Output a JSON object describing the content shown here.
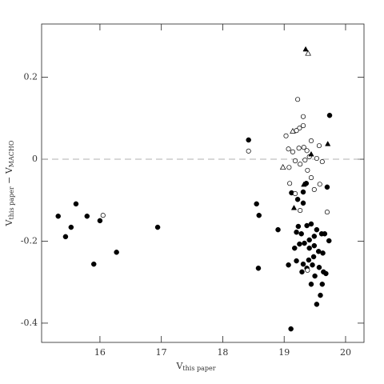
{
  "chart_data": {
    "type": "scatter",
    "xlabel": {
      "main": "V",
      "sub": "this paper"
    },
    "ylabel": {
      "parts": [
        {
          "main": "V",
          "sub": "this paper"
        },
        {
          "main": " − V",
          "sub": "MACHO"
        }
      ]
    },
    "xlim": [
      15.05,
      20.3
    ],
    "ylim": [
      -0.447,
      0.33
    ],
    "xticks": [
      16,
      17,
      18,
      19,
      20
    ],
    "yticks": [
      0.2,
      0,
      -0.2,
      -0.4
    ],
    "hline": 0,
    "series": [
      {
        "marker": "circle",
        "filled": true,
        "color": "#000000",
        "x": [
          15.32,
          15.44,
          15.53,
          15.61,
          15.79,
          15.9,
          16.0,
          16.27,
          16.94,
          18.42,
          18.55,
          18.59,
          18.58,
          18.9,
          19.07,
          19.11,
          19.74,
          19.12,
          19.22,
          19.31,
          19.31,
          19.36,
          19.23,
          19.2,
          19.28,
          19.37,
          19.44,
          19.53,
          19.61,
          19.66,
          19.7,
          19.73,
          19.17,
          19.25,
          19.33,
          19.41,
          19.49,
          19.56,
          19.63,
          19.2,
          19.31,
          19.4,
          19.48,
          19.29,
          19.37,
          19.46,
          19.57,
          19.64,
          19.62,
          19.59,
          19.53,
          19.68,
          19.41,
          19.49,
          19.5,
          19.44
        ],
        "values": [
          -0.139,
          -0.189,
          -0.166,
          -0.109,
          -0.139,
          -0.256,
          -0.15,
          -0.227,
          -0.166,
          0.047,
          -0.109,
          -0.137,
          -0.266,
          -0.172,
          -0.258,
          -0.414,
          0.107,
          -0.082,
          -0.098,
          -0.08,
          -0.107,
          -0.059,
          -0.164,
          -0.178,
          -0.182,
          -0.162,
          -0.158,
          -0.172,
          -0.182,
          -0.182,
          -0.068,
          -0.199,
          -0.217,
          -0.207,
          -0.205,
          -0.217,
          -0.211,
          -0.225,
          -0.229,
          -0.248,
          -0.256,
          -0.246,
          -0.238,
          -0.275,
          -0.266,
          -0.258,
          -0.264,
          -0.275,
          -0.305,
          -0.332,
          -0.354,
          -0.279,
          -0.197,
          -0.188,
          -0.285,
          -0.305
        ]
      },
      {
        "marker": "circle",
        "filled": false,
        "color": "#000000",
        "x": [
          16.05,
          18.42,
          19.22,
          19.31,
          19.25,
          19.31,
          19.2,
          19.03,
          19.07,
          19.14,
          19.24,
          19.32,
          19.37,
          19.44,
          19.41,
          19.34,
          19.18,
          19.08,
          19.26,
          19.53,
          19.62,
          19.57,
          19.38,
          19.09,
          19.18,
          19.44,
          19.49,
          19.58,
          19.26,
          19.7,
          19.38
        ],
        "values": [
          -0.137,
          0.02,
          0.146,
          0.104,
          0.076,
          0.082,
          0.07,
          0.057,
          0.025,
          0.018,
          0.027,
          0.029,
          0.021,
          0.045,
          0.006,
          -0.002,
          -0.004,
          -0.02,
          -0.012,
          0.002,
          -0.006,
          0.033,
          -0.027,
          -0.059,
          -0.084,
          -0.045,
          -0.074,
          -0.061,
          -0.125,
          -0.129,
          -0.271
        ]
      },
      {
        "marker": "triangle",
        "filled": true,
        "color": "#000000",
        "x": [
          19.35,
          19.71,
          19.44,
          19.32,
          19.16
        ],
        "values": [
          0.268,
          0.037,
          0.012,
          -0.062,
          -0.119
        ]
      },
      {
        "marker": "triangle",
        "filled": false,
        "color": "#000000",
        "x": [
          19.39,
          18.98,
          19.14
        ],
        "values": [
          0.258,
          -0.02,
          0.068
        ]
      }
    ]
  }
}
